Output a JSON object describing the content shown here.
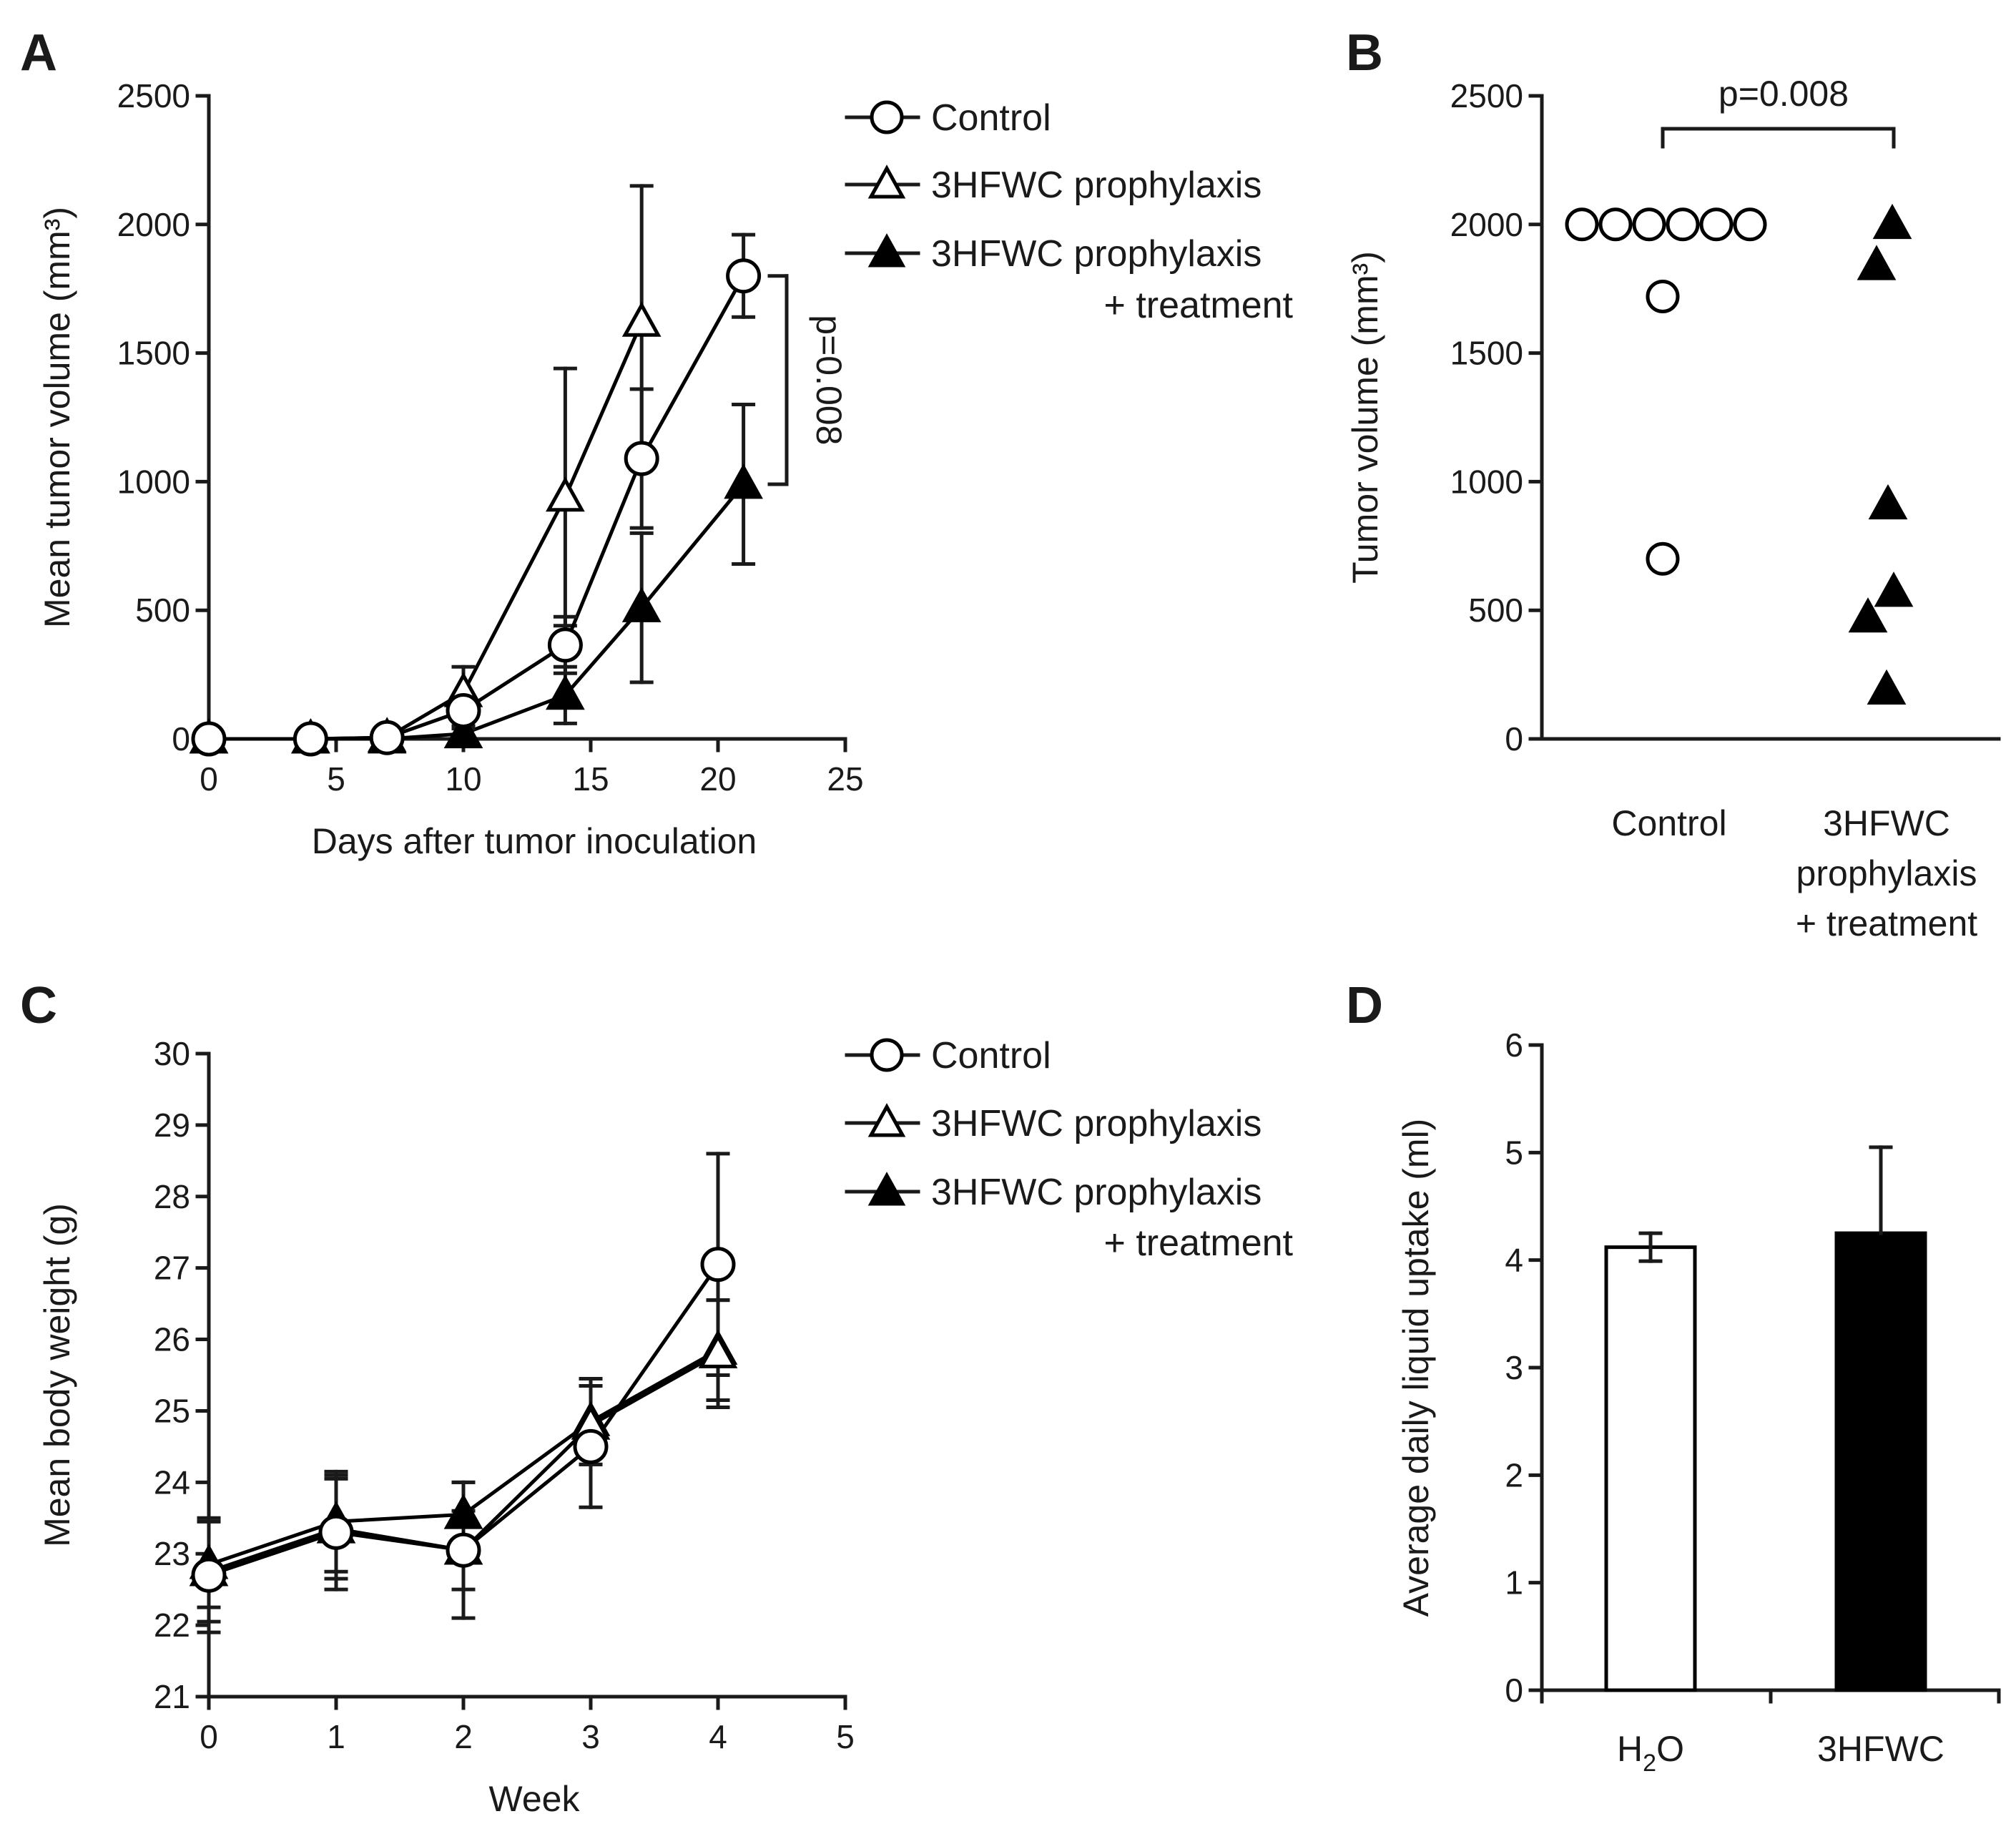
{
  "chart_data": [
    {
      "panel": "A",
      "type": "line",
      "xlabel": "Days after tumor inoculation",
      "ylabel": "Mean tumor volume (mm³)",
      "xlim": [
        0,
        25
      ],
      "ylim": [
        0,
        2500
      ],
      "xticks": [
        "0",
        "5",
        "10",
        "15",
        "20",
        "25"
      ],
      "yticks": [
        "0",
        "500",
        "1000",
        "1500",
        "2000",
        "2500"
      ],
      "x": [
        0,
        4,
        7,
        10,
        14,
        17,
        21
      ],
      "series": [
        {
          "name": "Control",
          "marker": "open-circle",
          "values": [
            0,
            0,
            5,
            110,
            365,
            1090,
            1800
          ],
          "errors": [
            0,
            0,
            15,
            60,
            110,
            270,
            160
          ]
        },
        {
          "name": "3HFWC prophylaxis",
          "marker": "open-triangle",
          "values": [
            0,
            0,
            5,
            180,
            940,
            1620,
            null
          ],
          "errors": [
            0,
            0,
            15,
            100,
            500,
            530,
            null
          ]
        },
        {
          "name": "3HFWC prophylaxis\n+ treatment",
          "marker": "filled-triangle",
          "values": [
            0,
            0,
            0,
            20,
            170,
            510,
            990
          ],
          "errors": [
            0,
            0,
            5,
            20,
            110,
            290,
            310
          ]
        }
      ],
      "legend": [
        "Control",
        "3HFWC prophylaxis",
        "3HFWC prophylaxis",
        "+ treatment"
      ],
      "annotation": "p=0.008",
      "legend_position": "right"
    },
    {
      "panel": "B",
      "type": "scatter",
      "ylabel": "Tumor volume (mm³)",
      "ylim": [
        0,
        2500
      ],
      "yticks": [
        "0",
        "500",
        "1000",
        "1500",
        "2000",
        "2500"
      ],
      "categories": [
        "Control",
        "3HFWC\nprophylaxis\n+ treatment"
      ],
      "category_lines": [
        [
          "Control"
        ],
        [
          "3HFWC",
          "prophylaxis",
          "+ treatment"
        ]
      ],
      "groups": [
        {
          "name": "Control",
          "marker": "open-circle",
          "values": [
            2000,
            2000,
            2000,
            2000,
            2000,
            2000,
            1720,
            700
          ]
        },
        {
          "name": "3HFWC prophylaxis + treatment",
          "marker": "filled-triangle",
          "values": [
            2000,
            1840,
            910,
            570,
            470,
            190
          ]
        }
      ],
      "annotation": "p=0.008"
    },
    {
      "panel": "C",
      "type": "line",
      "xlabel": "Week",
      "ylabel": "Mean body weight (g)",
      "xlim": [
        0,
        5
      ],
      "ylim": [
        21,
        30
      ],
      "xticks": [
        "0",
        "1",
        "2",
        "3",
        "4",
        "5"
      ],
      "yticks": [
        "21",
        "22",
        "23",
        "24",
        "25",
        "26",
        "27",
        "28",
        "29",
        "30"
      ],
      "x": [
        0,
        1,
        2,
        3,
        4
      ],
      "series": [
        {
          "name": "Control",
          "marker": "open-circle",
          "values": [
            22.7,
            23.3,
            23.05,
            24.5,
            27.05
          ],
          "errors": [
            0.8,
            0.8,
            0.95,
            0.85,
            1.55
          ]
        },
        {
          "name": "3HFWC prophylaxis",
          "marker": "open-triangle",
          "values": [
            22.75,
            23.35,
            23.05,
            24.8,
            25.8
          ],
          "errors": [
            0.7,
            0.7,
            0.55,
            0.55,
            0.75
          ]
        },
        {
          "name": "3HFWC prophylaxis\n+ treatment",
          "marker": "filled-triangle",
          "values": [
            22.85,
            23.45,
            23.55,
            24.85,
            25.85
          ],
          "errors": [
            0.6,
            0.7,
            0.45,
            0.6,
            0.7
          ]
        }
      ],
      "legend": [
        "Control",
        "3HFWC prophylaxis",
        "3HFWC prophylaxis",
        "+ treatment"
      ],
      "legend_position": "right"
    },
    {
      "panel": "D",
      "type": "bar",
      "ylabel": "Average daily liquid uptake (ml)",
      "ylim": [
        0,
        6
      ],
      "yticks": [
        "0",
        "1",
        "2",
        "3",
        "4",
        "5",
        "6"
      ],
      "categories": [
        "H2O",
        "3HFWC"
      ],
      "values": [
        4.12,
        4.25
      ],
      "errors": [
        0.13,
        0.8
      ],
      "colors": [
        "#ffffff",
        "#000000"
      ]
    }
  ]
}
